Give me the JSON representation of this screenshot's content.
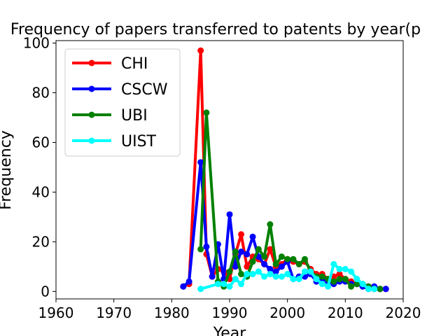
{
  "chart_data": {
    "type": "line",
    "title": "Frequency of papers transferred to patents by year(p",
    "xlabel": "Year",
    "ylabel": "Frequency",
    "xlim": [
      1960,
      2020
    ],
    "ylim": [
      -3,
      101
    ],
    "xticks": [
      1960,
      1970,
      1980,
      1990,
      2000,
      2010,
      2020
    ],
    "yticks": [
      0,
      20,
      40,
      60,
      80,
      100
    ],
    "grid": false,
    "legend_position": "upper left",
    "series": [
      {
        "name": "CHI",
        "color": "#ff0000",
        "x": [
          1982,
          1983,
          1985,
          1986,
          1987,
          1988,
          1989,
          1990,
          1991,
          1992,
          1993,
          1994,
          1995,
          1996,
          1997,
          1998,
          1999,
          2000,
          2001,
          2002,
          2003,
          2004,
          2005,
          2006,
          2007,
          2008,
          2009,
          2010,
          2011,
          2012,
          2013,
          2014,
          2015,
          2016,
          2017
        ],
        "y": [
          2,
          3,
          97,
          15,
          6,
          9,
          8,
          5,
          15,
          23,
          10,
          14,
          13,
          11,
          17,
          10,
          11,
          13,
          12,
          11,
          12,
          9,
          7,
          7,
          5,
          6,
          7,
          5,
          4,
          3,
          3,
          2,
          2,
          1,
          1
        ]
      },
      {
        "name": "CSCW",
        "color": "#0000ff",
        "x": [
          1982,
          1983,
          1985,
          1986,
          1987,
          1988,
          1989,
          1990,
          1991,
          1992,
          1993,
          1994,
          1995,
          1996,
          1997,
          1998,
          1999,
          2000,
          2001,
          2002,
          2003,
          2004,
          2005,
          2006,
          2007,
          2008,
          2009,
          2010,
          2011,
          2012,
          2013,
          2014,
          2015,
          2016,
          2017
        ],
        "y": [
          2,
          4,
          52,
          18,
          6,
          19,
          5,
          31,
          10,
          16,
          15,
          22,
          14,
          11,
          9,
          8,
          10,
          12,
          5,
          6,
          6,
          7,
          4,
          5,
          4,
          3,
          4,
          4,
          3,
          3,
          2,
          1,
          2,
          1,
          1
        ]
      },
      {
        "name": "UBI",
        "color": "#008000",
        "x": [
          1985,
          1986,
          1988,
          1989,
          1990,
          1991,
          1992,
          1993,
          1994,
          1995,
          1996,
          1997,
          1998,
          1999,
          2000,
          2001,
          2002,
          2003,
          2004,
          2005,
          2006,
          2007,
          2008,
          2009,
          2010,
          2011,
          2012,
          2013,
          2014,
          2015,
          2016
        ],
        "y": [
          17,
          72,
          4,
          2,
          8,
          16,
          7,
          6,
          12,
          17,
          14,
          27,
          11,
          14,
          13,
          13,
          11,
          13,
          8,
          6,
          6,
          5,
          4,
          5,
          5,
          2,
          3,
          3,
          2,
          1,
          1
        ]
      },
      {
        "name": "UIST",
        "color": "#00ffff",
        "x": [
          1985,
          1988,
          1989,
          1990,
          1991,
          1992,
          1993,
          1994,
          1995,
          1996,
          1997,
          1998,
          1999,
          2000,
          2001,
          2002,
          2003,
          2004,
          2005,
          2006,
          2007,
          2008,
          2009,
          2010,
          2011,
          2012,
          2013,
          2014,
          2015
        ],
        "y": [
          1,
          3,
          3,
          2,
          5,
          3,
          7,
          7,
          8,
          6,
          7,
          6,
          6,
          7,
          5,
          5,
          8,
          8,
          5,
          3,
          2,
          11,
          9,
          9,
          8,
          5,
          3,
          1,
          1
        ]
      }
    ]
  }
}
